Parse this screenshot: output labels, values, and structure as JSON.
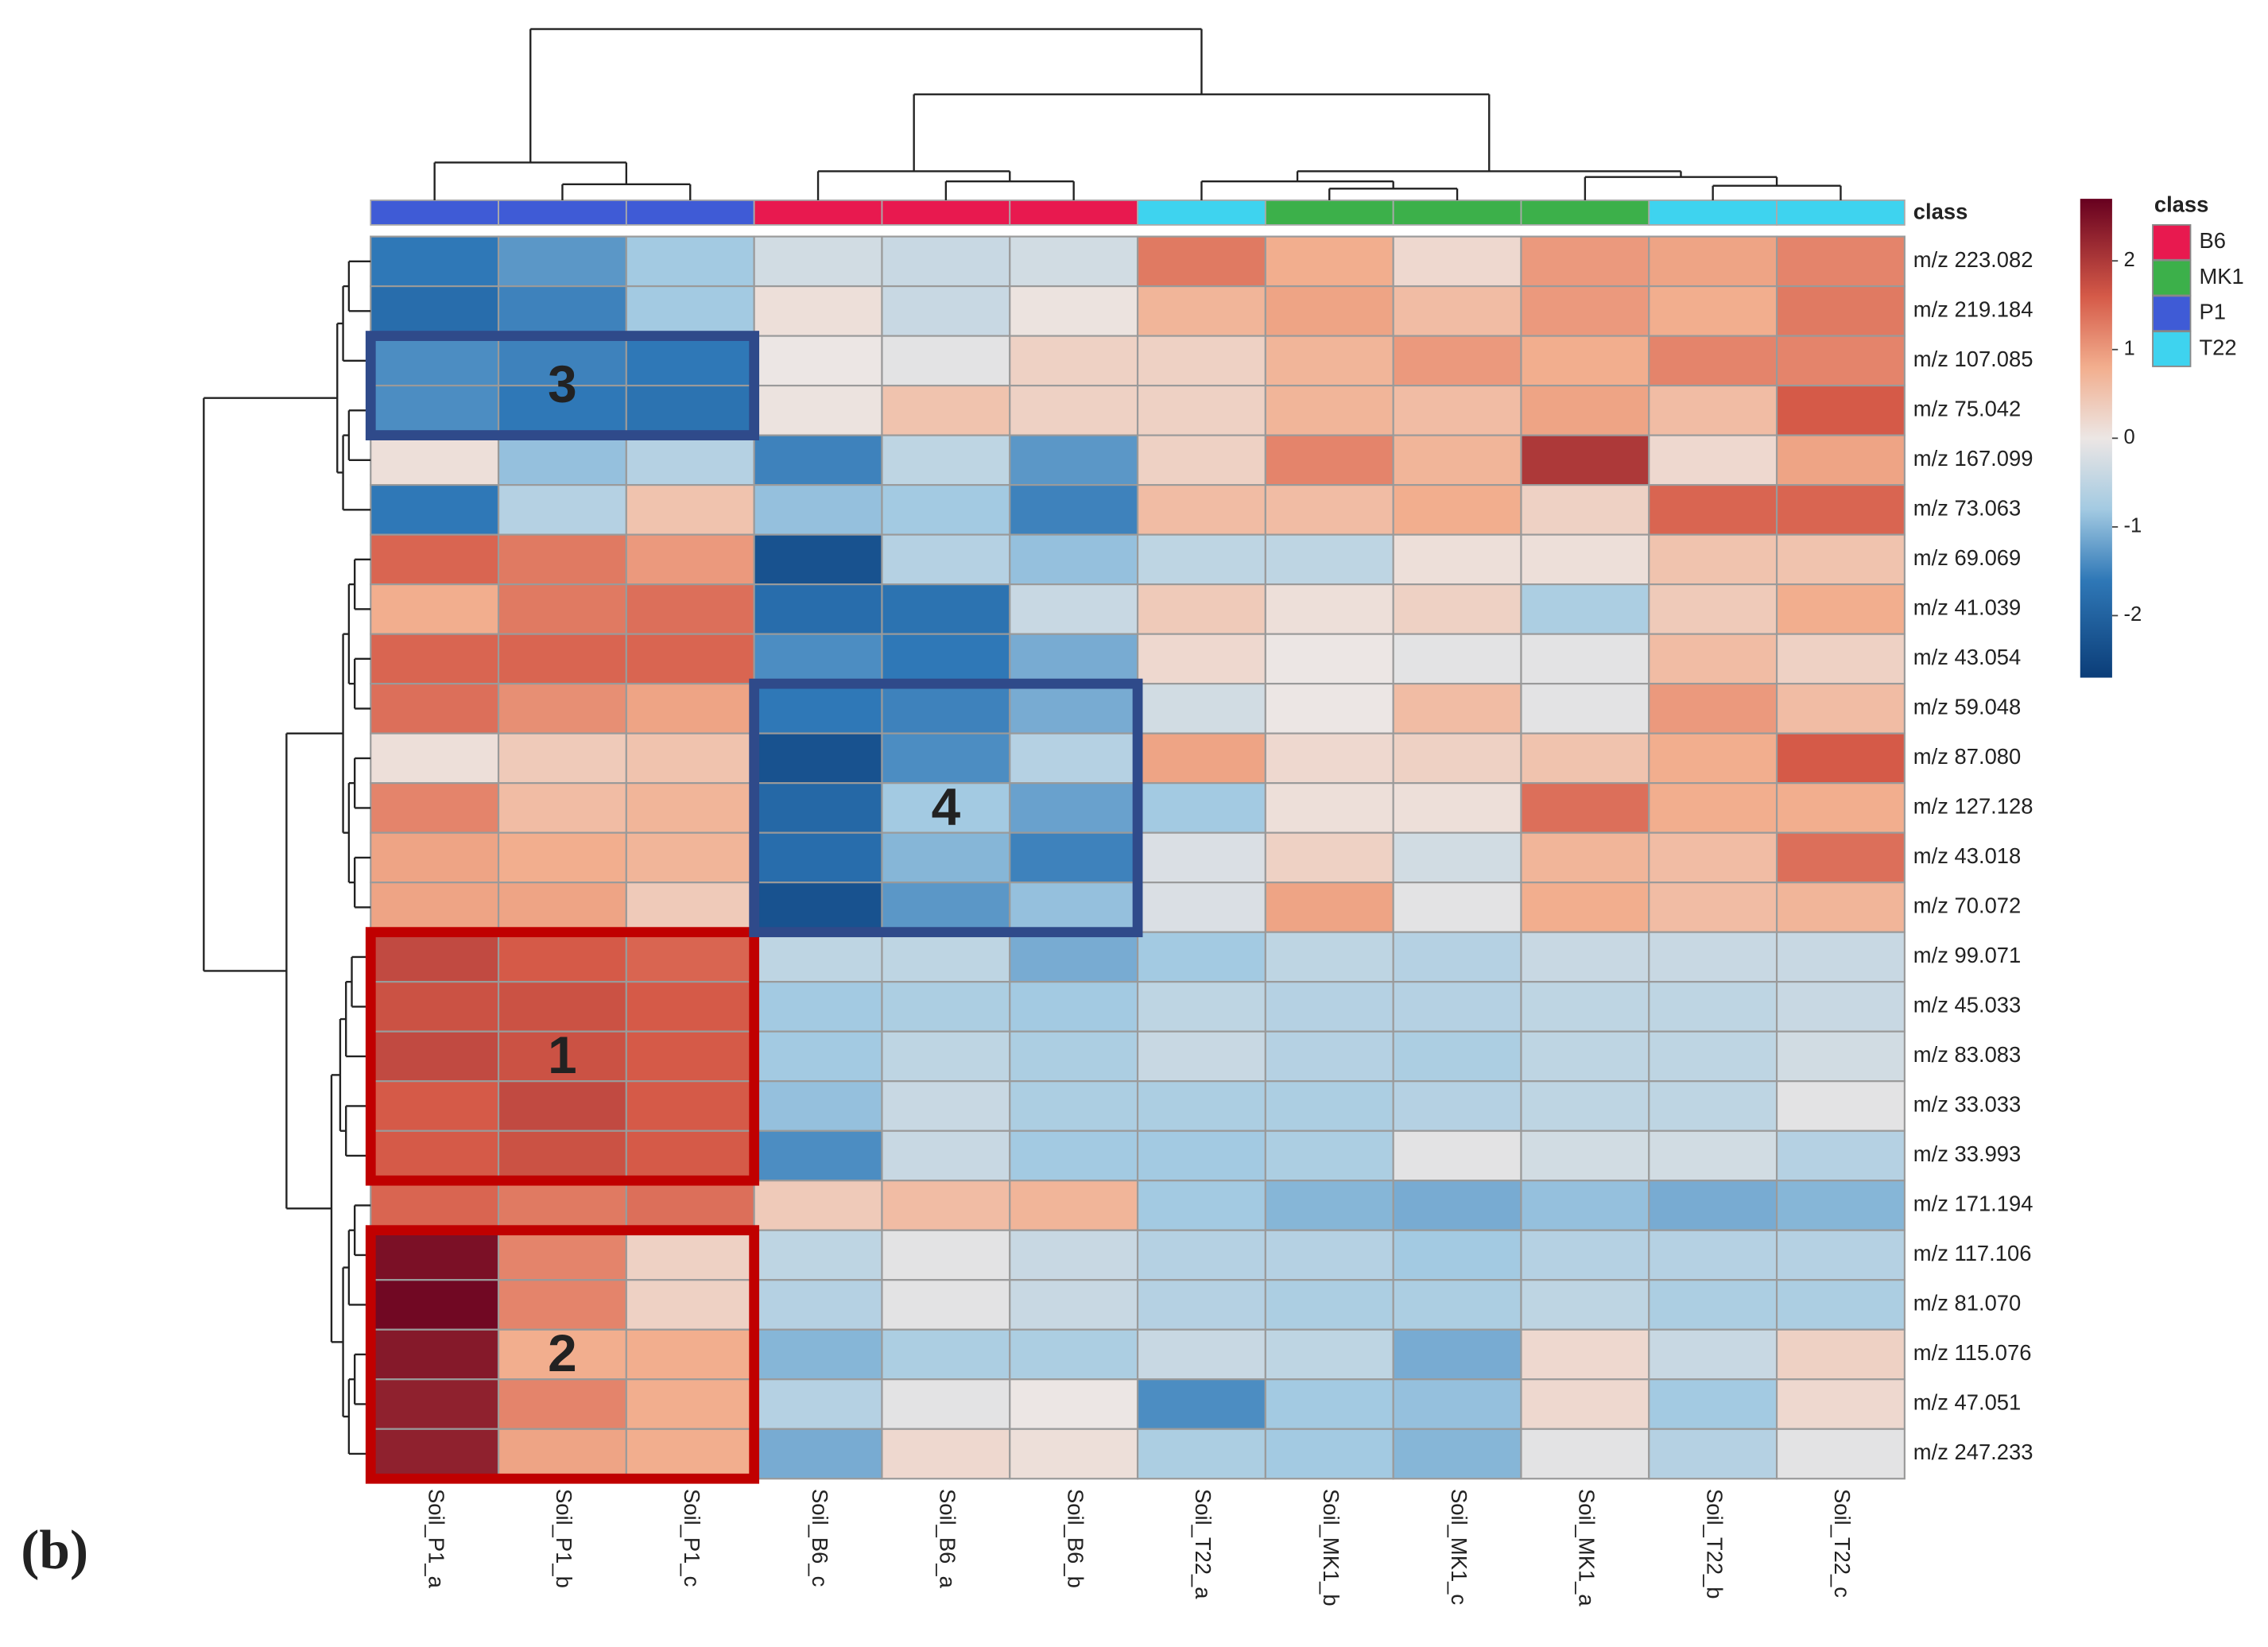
{
  "chart_data": {
    "type": "heatmap",
    "panel_label": "(b)",
    "class_bar_label": "class",
    "columns": [
      "Soil_P1_a",
      "Soil_P1_b",
      "Soil_P1_c",
      "Soil_B6_c",
      "Soil_B6_a",
      "Soil_B6_b",
      "Soil_T22_a",
      "Soil_MK1_b",
      "Soil_MK1_c",
      "Soil_MK1_a",
      "Soil_T22_b",
      "Soil_T22_c"
    ],
    "column_classes": [
      "P1",
      "P1",
      "P1",
      "B6",
      "B6",
      "B6",
      "T22",
      "MK1",
      "MK1",
      "MK1",
      "T22",
      "T22"
    ],
    "rows": [
      "m/z 223.082",
      "m/z 219.184",
      "m/z 107.085",
      "m/z 75.042",
      "m/z 167.099",
      "m/z 73.063",
      "m/z 69.069",
      "m/z 41.039",
      "m/z 43.054",
      "m/z 59.048",
      "m/z 87.080",
      "m/z 127.128",
      "m/z 43.018",
      "m/z 70.072",
      "m/z 99.071",
      "m/z 45.033",
      "m/z 83.083",
      "m/z 33.033",
      "m/z 33.993",
      "m/z 171.194",
      "m/z 117.106",
      "m/z 81.070",
      "m/z 115.076",
      "m/z 47.051",
      "m/z 247.233"
    ],
    "values": [
      [
        -1.6,
        -1.3,
        -0.8,
        -0.3,
        -0.4,
        -0.3,
        1.3,
        0.8,
        0.2,
        1.0,
        0.9,
        1.2
      ],
      [
        -1.8,
        -1.5,
        -0.8,
        0.1,
        -0.4,
        0.05,
        0.7,
        0.9,
        0.6,
        1.0,
        0.8,
        1.3
      ],
      [
        -1.4,
        -1.5,
        -1.6,
        0,
        -0.1,
        0.3,
        0.3,
        0.7,
        1.0,
        0.8,
        1.2,
        1.2
      ],
      [
        -1.4,
        -1.6,
        -1.7,
        0.05,
        0.5,
        0.3,
        0.3,
        0.7,
        0.6,
        0.9,
        0.6,
        1.6
      ],
      [
        0.1,
        -0.9,
        -0.6,
        -1.5,
        -0.5,
        -1.3,
        0.3,
        1.2,
        0.7,
        2.0,
        0.2,
        0.9
      ],
      [
        -1.6,
        -0.6,
        0.5,
        -0.9,
        -0.8,
        -1.5,
        0.6,
        0.6,
        0.8,
        0.3,
        1.5,
        1.5
      ],
      [
        1.5,
        1.3,
        1.0,
        -2.3,
        -0.6,
        -0.9,
        -0.5,
        -0.5,
        0.1,
        0.1,
        0.5,
        0.5
      ],
      [
        0.8,
        1.3,
        1.4,
        -1.8,
        -1.7,
        -0.4,
        0.4,
        0.1,
        0.3,
        -0.7,
        0.4,
        0.8
      ],
      [
        1.5,
        1.5,
        1.5,
        -1.4,
        -1.6,
        -1.1,
        0.2,
        0,
        -0.1,
        -0.1,
        0.6,
        0.3
      ],
      [
        1.4,
        1.1,
        0.9,
        -1.6,
        -1.5,
        -1.1,
        -0.3,
        0,
        0.6,
        -0.1,
        1.0,
        0.6
      ],
      [
        0.1,
        0.4,
        0.5,
        -2.3,
        -1.4,
        -0.6,
        0.9,
        0.2,
        0.3,
        0.5,
        0.8,
        1.6
      ],
      [
        1.2,
        0.6,
        0.7,
        -1.9,
        -0.8,
        -1.2,
        -0.8,
        0.1,
        0.1,
        1.4,
        0.8,
        0.8
      ],
      [
        0.9,
        0.8,
        0.7,
        -1.8,
        -1.0,
        -1.5,
        -0.2,
        0.3,
        -0.3,
        0.7,
        0.6,
        1.4
      ],
      [
        0.9,
        0.9,
        0.4,
        -2.3,
        -1.3,
        -0.9,
        -0.2,
        0.9,
        -0.1,
        0.8,
        0.6,
        0.7
      ],
      [
        1.8,
        1.6,
        1.5,
        -0.5,
        -0.5,
        -1.1,
        -0.8,
        -0.5,
        -0.6,
        -0.4,
        -0.4,
        -0.4
      ],
      [
        1.7,
        1.7,
        1.6,
        -0.8,
        -0.7,
        -0.8,
        -0.5,
        -0.6,
        -0.6,
        -0.5,
        -0.5,
        -0.4
      ],
      [
        1.8,
        1.7,
        1.6,
        -0.8,
        -0.5,
        -0.7,
        -0.4,
        -0.6,
        -0.7,
        -0.5,
        -0.5,
        -0.3
      ],
      [
        1.6,
        1.8,
        1.6,
        -0.9,
        -0.4,
        -0.7,
        -0.7,
        -0.7,
        -0.6,
        -0.5,
        -0.5,
        -0.1
      ],
      [
        1.6,
        1.7,
        1.6,
        -1.4,
        -0.4,
        -0.8,
        -0.8,
        -0.7,
        -0.1,
        -0.3,
        -0.3,
        -0.6
      ],
      [
        1.5,
        1.3,
        1.4,
        0.4,
        0.6,
        0.7,
        -0.8,
        -1.0,
        -1.1,
        -0.9,
        -1.1,
        -1.0
      ],
      [
        2.5,
        1.2,
        0.3,
        -0.5,
        -0.1,
        -0.4,
        -0.6,
        -0.6,
        -0.8,
        -0.6,
        -0.6,
        -0.6
      ],
      [
        2.6,
        1.2,
        0.3,
        -0.6,
        -0.1,
        -0.4,
        -0.6,
        -0.7,
        -0.7,
        -0.5,
        -0.7,
        -0.7
      ],
      [
        2.4,
        0.8,
        0.8,
        -1.0,
        -0.7,
        -0.7,
        -0.4,
        -0.5,
        -1.1,
        0.2,
        -0.4,
        0.3
      ],
      [
        2.3,
        1.2,
        0.8,
        -0.6,
        -0.1,
        0,
        -1.4,
        -0.8,
        -0.9,
        0.2,
        -0.8,
        0.2
      ],
      [
        2.3,
        0.9,
        0.8,
        -1.1,
        0.2,
        0.1,
        -0.7,
        -0.8,
        -1.0,
        -0.1,
        -0.6,
        -0.1
      ]
    ],
    "colorscale": [
      {
        "value": -2.7,
        "color": "#0b3d78"
      },
      {
        "value": -1.6,
        "color": "#2f78b7"
      },
      {
        "value": -0.8,
        "color": "#a3cae2"
      },
      {
        "value": 0,
        "color": "#ece6e4"
      },
      {
        "value": 0.8,
        "color": "#f2ae8e"
      },
      {
        "value": 1.6,
        "color": "#d55a48"
      },
      {
        "value": 2.7,
        "color": "#67001f"
      }
    ],
    "zlim": [
      -2.7,
      2.7
    ],
    "zticks": [
      -2,
      -1,
      0,
      1,
      2
    ],
    "legend": {
      "title": "class",
      "items": [
        {
          "name": "B6",
          "color": "#e8194f"
        },
        {
          "name": "MK1",
          "color": "#3cb04a"
        },
        {
          "name": "P1",
          "color": "#3f5bd6"
        },
        {
          "name": "T22",
          "color": "#3ed3ef"
        }
      ]
    },
    "annotations": [
      {
        "label": "1",
        "color": "#c00000"
      },
      {
        "label": "2",
        "color": "#c00000"
      },
      {
        "label": "3",
        "color": "#2f4a8a"
      },
      {
        "label": "4",
        "color": "#2f4a8a"
      }
    ]
  }
}
